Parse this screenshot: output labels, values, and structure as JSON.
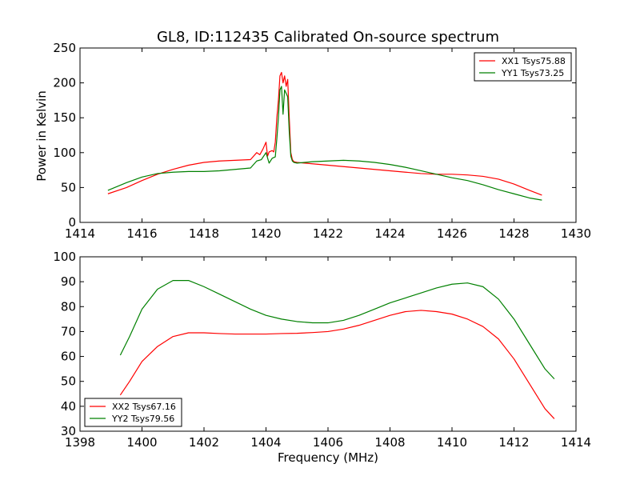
{
  "figure": {
    "title": "GL8, ID:112435 Calibrated On-source spectrum",
    "ylabel_top": "Power in Kelvin",
    "xlabel_bottom": "Frequency (MHz)"
  },
  "chart_data": [
    {
      "type": "line",
      "title": "GL8, ID:112435 Calibrated On-source spectrum",
      "xlabel": "",
      "ylabel": "Power in Kelvin",
      "xlim": [
        1414,
        1430
      ],
      "ylim": [
        0,
        250
      ],
      "xticks": [
        1414,
        1416,
        1418,
        1420,
        1422,
        1424,
        1426,
        1428,
        1430
      ],
      "yticks": [
        0,
        50,
        100,
        150,
        200,
        250
      ],
      "grid": false,
      "legend": "top-right",
      "series": [
        {
          "name": "XX1 Tsys75.88",
          "color": "#ff0000",
          "x": [
            1414.9,
            1415.5,
            1416.0,
            1416.5,
            1417.0,
            1417.5,
            1418.0,
            1418.5,
            1419.0,
            1419.5,
            1419.7,
            1419.8,
            1419.9,
            1420.0,
            1420.05,
            1420.1,
            1420.2,
            1420.25,
            1420.3,
            1420.35,
            1420.4,
            1420.45,
            1420.5,
            1420.55,
            1420.6,
            1420.65,
            1420.7,
            1420.75,
            1420.8,
            1420.85,
            1420.9,
            1421.0,
            1421.5,
            1422.0,
            1422.5,
            1423.0,
            1423.5,
            1424.0,
            1424.5,
            1425.0,
            1425.5,
            1426.0,
            1426.5,
            1427.0,
            1427.5,
            1428.0,
            1428.5,
            1428.9
          ],
          "y": [
            41,
            50,
            60,
            69,
            76,
            82,
            86,
            88,
            89,
            90,
            100,
            97,
            105,
            115,
            95,
            101,
            103,
            101,
            115,
            150,
            175,
            210,
            215,
            200,
            210,
            195,
            205,
            150,
            100,
            90,
            87,
            86,
            84,
            82,
            80,
            78,
            76,
            74,
            72,
            70,
            69,
            69,
            68,
            66,
            62,
            55,
            46,
            39
          ]
        },
        {
          "name": "YY1 Tsys73.25",
          "color": "#008000",
          "x": [
            1414.9,
            1415.5,
            1416.0,
            1416.5,
            1417.0,
            1417.5,
            1418.0,
            1418.5,
            1419.0,
            1419.5,
            1419.7,
            1419.85,
            1420.0,
            1420.1,
            1420.2,
            1420.3,
            1420.35,
            1420.4,
            1420.45,
            1420.5,
            1420.55,
            1420.6,
            1420.65,
            1420.7,
            1420.75,
            1420.8,
            1420.85,
            1420.9,
            1421.0,
            1421.5,
            1422.0,
            1422.5,
            1423.0,
            1423.5,
            1424.0,
            1424.5,
            1425.0,
            1425.5,
            1426.0,
            1426.5,
            1427.0,
            1427.5,
            1428.0,
            1428.5,
            1428.9
          ],
          "y": [
            46,
            57,
            65,
            70,
            72,
            73,
            73,
            74,
            76,
            78,
            88,
            90,
            100,
            85,
            92,
            94,
            120,
            150,
            190,
            195,
            155,
            190,
            185,
            180,
            130,
            95,
            88,
            86,
            85,
            87,
            88,
            89,
            88,
            86,
            83,
            79,
            74,
            69,
            64,
            60,
            54,
            47,
            41,
            35,
            32
          ]
        }
      ]
    },
    {
      "type": "line",
      "title": "",
      "xlabel": "Frequency (MHz)",
      "ylabel": "",
      "xlim": [
        1398,
        1414
      ],
      "ylim": [
        30,
        100
      ],
      "xticks": [
        1398,
        1400,
        1402,
        1404,
        1406,
        1408,
        1410,
        1412,
        1414
      ],
      "yticks": [
        30,
        40,
        50,
        60,
        70,
        80,
        90,
        100
      ],
      "grid": false,
      "legend": "bottom-left",
      "series": [
        {
          "name": "XX2 Tsys67.16",
          "color": "#ff0000",
          "x": [
            1399.3,
            1399.6,
            1400.0,
            1400.5,
            1401.0,
            1401.5,
            1402.0,
            1402.5,
            1403.0,
            1403.5,
            1404.0,
            1404.5,
            1405.0,
            1405.5,
            1406.0,
            1406.5,
            1407.0,
            1407.5,
            1408.0,
            1408.5,
            1409.0,
            1409.5,
            1410.0,
            1410.5,
            1411.0,
            1411.5,
            1412.0,
            1412.5,
            1413.0,
            1413.3
          ],
          "y": [
            44.5,
            50,
            58,
            64,
            68,
            69.5,
            69.5,
            69.2,
            69,
            69,
            69,
            69.2,
            69.3,
            69.6,
            70,
            71,
            72.5,
            74.5,
            76.5,
            78,
            78.5,
            78,
            77,
            75,
            72,
            67,
            59,
            49,
            39,
            35
          ]
        },
        {
          "name": "YY2 Tsys79.56",
          "color": "#008000",
          "x": [
            1399.3,
            1399.6,
            1400.0,
            1400.5,
            1401.0,
            1401.5,
            1402.0,
            1402.5,
            1403.0,
            1403.5,
            1404.0,
            1404.5,
            1405.0,
            1405.5,
            1406.0,
            1406.5,
            1407.0,
            1407.5,
            1408.0,
            1408.5,
            1409.0,
            1409.5,
            1410.0,
            1410.5,
            1411.0,
            1411.5,
            1412.0,
            1412.5,
            1413.0,
            1413.3
          ],
          "y": [
            60.5,
            68,
            79,
            87,
            90.5,
            90.5,
            88,
            85,
            82,
            79,
            76.5,
            75,
            74,
            73.5,
            73.5,
            74.5,
            76.5,
            79,
            81.5,
            83.5,
            85.5,
            87.5,
            89,
            89.5,
            88,
            83,
            75,
            65,
            55,
            51
          ]
        }
      ]
    }
  ]
}
